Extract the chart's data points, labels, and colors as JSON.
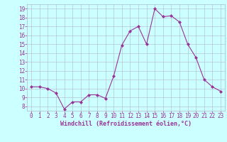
{
  "x": [
    0,
    1,
    2,
    3,
    4,
    5,
    6,
    7,
    8,
    9,
    10,
    11,
    12,
    13,
    14,
    15,
    16,
    17,
    18,
    19,
    20,
    21,
    22,
    23
  ],
  "y": [
    10.2,
    10.2,
    10.0,
    9.5,
    7.7,
    8.5,
    8.5,
    9.3,
    9.3,
    8.9,
    11.4,
    14.9,
    16.5,
    17.0,
    15.0,
    19.0,
    18.1,
    18.2,
    17.5,
    15.0,
    13.5,
    11.0,
    10.2,
    9.7
  ],
  "line_color": "#993399",
  "marker": "D",
  "marker_size": 2.0,
  "bg_color": "#ccffff",
  "grid_color": "#b0b8cc",
  "xlabel": "Windchill (Refroidissement éolien,°C)",
  "tick_color": "#993399",
  "ylim": [
    7.5,
    19.5
  ],
  "xlim": [
    -0.5,
    23.5
  ],
  "yticks": [
    8,
    9,
    10,
    11,
    12,
    13,
    14,
    15,
    16,
    17,
    18,
    19
  ],
  "xticks": [
    0,
    1,
    2,
    3,
    4,
    5,
    6,
    7,
    8,
    9,
    10,
    11,
    12,
    13,
    14,
    15,
    16,
    17,
    18,
    19,
    20,
    21,
    22,
    23
  ],
  "figsize": [
    3.2,
    2.0
  ],
  "dpi": 100,
  "tick_fontsize": 5.5,
  "xlabel_fontsize": 6.0
}
